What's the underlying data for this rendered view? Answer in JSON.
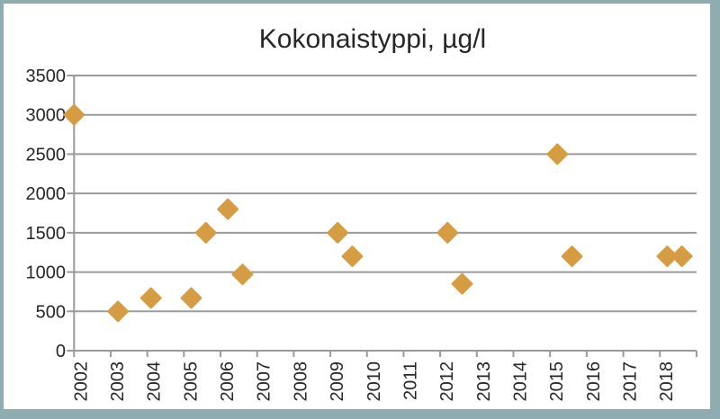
{
  "chart_data": {
    "type": "scatter",
    "title": "Kokonaistyppi, µg/l",
    "legend": "none",
    "grid": "horizontal",
    "x_axis": {
      "min": 2002,
      "max": 2019,
      "tick_step": 1,
      "label_rotation_deg": -90,
      "tick_labels": [
        "2002",
        "2003",
        "2004",
        "2005",
        "2006",
        "2007",
        "2008",
        "2009",
        "2010",
        "2011",
        "2012",
        "2013",
        "2014",
        "2015",
        "2016",
        "2017",
        "2018"
      ]
    },
    "y_axis": {
      "min": 0,
      "max": 3500,
      "tick_step": 500,
      "tick_labels": [
        "0",
        "500",
        "1000",
        "1500",
        "2000",
        "2500",
        "3000",
        "3500"
      ]
    },
    "series": [
      {
        "name": "Kokonaistyppi",
        "marker": "diamond",
        "color": "#d69c43",
        "points": [
          {
            "x": 2002.0,
            "y": 3000
          },
          {
            "x": 2003.2,
            "y": 500
          },
          {
            "x": 2004.1,
            "y": 670
          },
          {
            "x": 2005.2,
            "y": 670
          },
          {
            "x": 2005.6,
            "y": 1500
          },
          {
            "x": 2006.2,
            "y": 1800
          },
          {
            "x": 2006.6,
            "y": 970
          },
          {
            "x": 2009.2,
            "y": 1500
          },
          {
            "x": 2009.6,
            "y": 1200
          },
          {
            "x": 2012.2,
            "y": 1500
          },
          {
            "x": 2012.6,
            "y": 850
          },
          {
            "x": 2015.2,
            "y": 2500
          },
          {
            "x": 2015.6,
            "y": 1200
          },
          {
            "x": 2018.2,
            "y": 1200
          },
          {
            "x": 2018.6,
            "y": 1200
          }
        ]
      }
    ]
  },
  "colors": {
    "frame_border": "#8fadb0",
    "chart_background": "#ffffff",
    "gridline": "#9a9a9a",
    "axis": "#9a9a9a",
    "text": "#262626",
    "marker": "#d69c43"
  }
}
